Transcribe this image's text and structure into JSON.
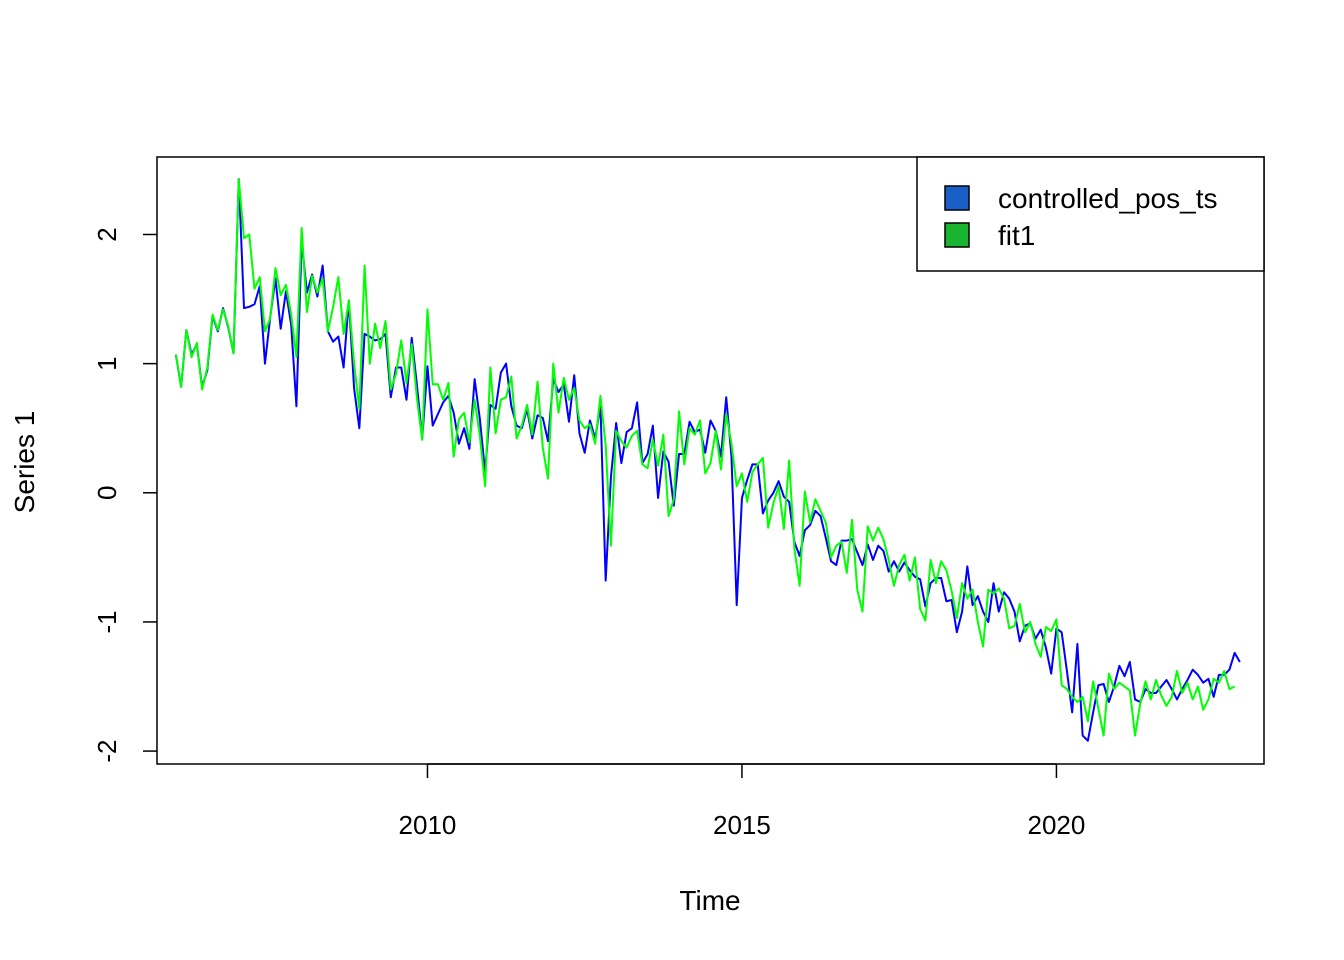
{
  "chart_data": {
    "type": "line",
    "xlabel": "Time",
    "ylabel": "Series 1",
    "xlim": [
      2005.7,
      2023.3
    ],
    "ylim": [
      -2.1,
      2.6
    ],
    "x_ticks": [
      2010,
      2015,
      2020
    ],
    "x_tick_labels": [
      "2010",
      "2015",
      "2020"
    ],
    "y_ticks": [
      -2,
      -1,
      0,
      1,
      2
    ],
    "y_tick_labels": [
      "-2",
      "-1",
      "0",
      "1",
      "2"
    ],
    "grid": false,
    "legend_position": "top-right",
    "frequency": 12,
    "start": 2006.0,
    "series": [
      {
        "name": "controlled_pos_ts",
        "color": "#0000ff",
        "legend_fill": "#1a5fc7",
        "values": [
          1.07,
          0.82,
          1.26,
          1.07,
          1.15,
          0.82,
          0.95,
          1.37,
          1.25,
          1.43,
          1.28,
          1.08,
          2.43,
          1.43,
          1.44,
          1.46,
          1.6,
          1.0,
          1.36,
          1.66,
          1.27,
          1.56,
          1.3,
          0.67,
          1.95,
          1.55,
          1.69,
          1.52,
          1.76,
          1.25,
          1.17,
          1.21,
          0.97,
          1.49,
          0.81,
          0.5,
          1.23,
          1.21,
          1.18,
          1.19,
          1.23,
          0.74,
          0.97,
          0.97,
          0.72,
          1.2,
          0.83,
          0.42,
          0.98,
          0.52,
          0.61,
          0.7,
          0.75,
          0.62,
          0.38,
          0.5,
          0.34,
          0.88,
          0.57,
          0.16,
          0.68,
          0.65,
          0.93,
          1.0,
          0.67,
          0.52,
          0.5,
          0.65,
          0.42,
          0.6,
          0.58,
          0.4,
          0.88,
          0.78,
          0.84,
          0.55,
          0.91,
          0.46,
          0.31,
          0.56,
          0.42,
          0.68,
          -0.68,
          0.12,
          0.54,
          0.23,
          0.47,
          0.5,
          0.7,
          0.23,
          0.3,
          0.52,
          -0.04,
          0.32,
          0.24,
          -0.1,
          0.3,
          0.3,
          0.55,
          0.47,
          0.49,
          0.31,
          0.56,
          0.48,
          0.28,
          0.74,
          0.28,
          -0.87,
          -0.04,
          0.1,
          0.22,
          0.22,
          -0.16,
          -0.06,
          0.0,
          0.09,
          -0.03,
          -0.07,
          -0.38,
          -0.49,
          -0.29,
          -0.25,
          -0.14,
          -0.18,
          -0.35,
          -0.53,
          -0.56,
          -0.37,
          -0.37,
          -0.36,
          -0.46,
          -0.56,
          -0.4,
          -0.52,
          -0.41,
          -0.45,
          -0.61,
          -0.53,
          -0.61,
          -0.54,
          -0.6,
          -0.65,
          -0.67,
          -0.88,
          -0.7,
          -0.66,
          -0.66,
          -0.84,
          -0.83,
          -1.08,
          -0.92,
          -0.57,
          -0.87,
          -0.8,
          -0.92,
          -1.0,
          -0.7,
          -0.92,
          -0.77,
          -0.82,
          -0.92,
          -1.15,
          -1.03,
          -1.01,
          -1.13,
          -1.06,
          -1.2,
          -1.4,
          -1.05,
          -1.08,
          -1.38,
          -1.7,
          -1.17,
          -1.88,
          -1.92,
          -1.7,
          -1.49,
          -1.48,
          -1.62,
          -1.5,
          -1.34,
          -1.42,
          -1.31,
          -1.6,
          -1.62,
          -1.52,
          -1.55,
          -1.55,
          -1.5,
          -1.45,
          -1.52,
          -1.6,
          -1.52,
          -1.45,
          -1.37,
          -1.41,
          -1.47,
          -1.44,
          -1.58,
          -1.41,
          -1.41,
          -1.37,
          -1.24,
          -1.31
        ]
      },
      {
        "name": "fit1",
        "color": "#00ff00",
        "legend_fill": "#1ab530",
        "values": [
          1.07,
          0.82,
          1.26,
          1.05,
          1.16,
          0.8,
          0.97,
          1.38,
          1.26,
          1.42,
          1.29,
          1.08,
          2.43,
          1.97,
          2.0,
          1.58,
          1.67,
          1.25,
          1.35,
          1.74,
          1.53,
          1.61,
          1.38,
          1.05,
          2.05,
          1.4,
          1.68,
          1.55,
          1.66,
          1.25,
          1.44,
          1.67,
          1.23,
          1.49,
          1.0,
          0.65,
          1.76,
          1.0,
          1.31,
          1.12,
          1.33,
          0.8,
          0.92,
          1.18,
          0.85,
          1.15,
          0.73,
          0.41,
          1.42,
          0.84,
          0.84,
          0.72,
          0.85,
          0.28,
          0.57,
          0.62,
          0.39,
          0.72,
          0.44,
          0.05,
          0.97,
          0.46,
          0.72,
          0.74,
          0.9,
          0.42,
          0.52,
          0.68,
          0.45,
          0.86,
          0.35,
          0.11,
          1.0,
          0.62,
          0.89,
          0.72,
          0.81,
          0.56,
          0.5,
          0.53,
          0.38,
          0.75,
          0.37,
          -0.41,
          0.48,
          0.4,
          0.35,
          0.44,
          0.48,
          0.22,
          0.19,
          0.41,
          0.21,
          0.45,
          -0.18,
          -0.05,
          0.63,
          0.22,
          0.5,
          0.45,
          0.56,
          0.15,
          0.23,
          0.48,
          0.18,
          0.61,
          0.38,
          0.05,
          0.15,
          -0.07,
          0.16,
          0.22,
          0.27,
          -0.27,
          -0.08,
          0.05,
          -0.28,
          0.25,
          -0.43,
          -0.72,
          0.01,
          -0.23,
          -0.05,
          -0.14,
          -0.23,
          -0.5,
          -0.41,
          -0.38,
          -0.62,
          -0.21,
          -0.75,
          -0.92,
          -0.26,
          -0.37,
          -0.27,
          -0.36,
          -0.52,
          -0.72,
          -0.56,
          -0.48,
          -0.68,
          -0.5,
          -0.9,
          -0.99,
          -0.52,
          -0.7,
          -0.53,
          -0.6,
          -0.76,
          -0.97,
          -0.7,
          -0.82,
          -0.75,
          -1.0,
          -1.19,
          -0.75,
          -0.78,
          -0.74,
          -0.82,
          -1.05,
          -1.03,
          -0.86,
          -1.08,
          -1.0,
          -1.17,
          -1.27,
          -1.04,
          -1.07,
          -0.98,
          -1.49,
          -1.52,
          -1.58,
          -1.62,
          -1.58,
          -1.77,
          -1.46,
          -1.67,
          -1.88,
          -1.4,
          -1.52,
          -1.47,
          -1.5,
          -1.53,
          -1.88,
          -1.63,
          -1.46,
          -1.6,
          -1.45,
          -1.57,
          -1.65,
          -1.58,
          -1.38,
          -1.55,
          -1.47,
          -1.6,
          -1.5,
          -1.68,
          -1.6,
          -1.44,
          -1.47,
          -1.38,
          -1.52,
          -1.5
        ]
      }
    ]
  }
}
